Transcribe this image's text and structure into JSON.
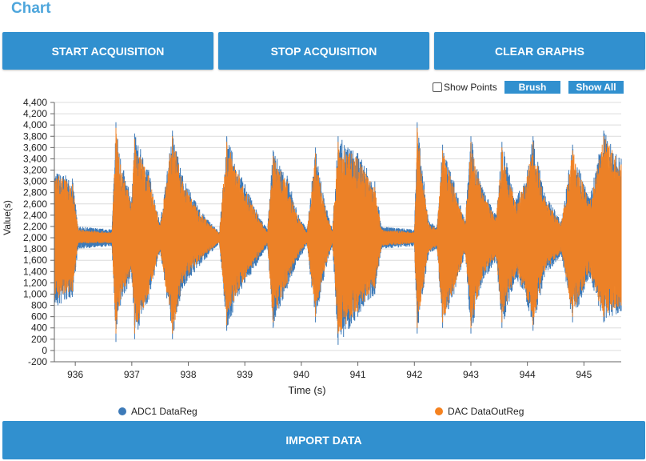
{
  "page": {
    "title": "Chart"
  },
  "toolbar": {
    "start_label": "START ACQUISITION",
    "stop_label": "STOP ACQUISITION",
    "clear_label": "CLEAR GRAPHS"
  },
  "controls": {
    "show_points_label": "Show Points",
    "show_points_checked": false,
    "brush_label": "Brush",
    "show_all_label": "Show All"
  },
  "chart_data": {
    "type": "line",
    "xlabel": "Time (s)",
    "ylabel": "Value(s)",
    "xlim": [
      935.63,
      945.66
    ],
    "ylim": [
      -200,
      4400
    ],
    "x_ticks": [
      936,
      937,
      938,
      939,
      940,
      941,
      942,
      943,
      944,
      945
    ],
    "y_ticks": [
      -200,
      0,
      200,
      400,
      600,
      800,
      1000,
      1200,
      1400,
      1600,
      1800,
      2000,
      2200,
      2400,
      2600,
      2800,
      3000,
      3200,
      3400,
      3600,
      3800,
      4000,
      4200,
      4400
    ],
    "y_tick_labels": [
      "-200",
      "0",
      "200",
      "400",
      "600",
      "800",
      "1,000",
      "1,200",
      "1,400",
      "1,600",
      "1,800",
      "2,000",
      "2,200",
      "2,400",
      "2,600",
      "2,800",
      "3,000",
      "3,200",
      "3,400",
      "3,600",
      "3,800",
      "4,000",
      "4,200",
      "4,400"
    ],
    "grid": true,
    "legend_position": "bottom",
    "baseline": 2000,
    "series": [
      {
        "name": "ADC1 DataReg",
        "color": "#3d7ab8",
        "envelope": [
          {
            "x": 935.63,
            "min": 700,
            "max": 3200
          },
          {
            "x": 935.95,
            "min": 950,
            "max": 3050
          },
          {
            "x": 936.05,
            "min": 1800,
            "max": 2200
          },
          {
            "x": 936.65,
            "min": 1850,
            "max": 2150
          },
          {
            "x": 936.72,
            "min": 150,
            "max": 4050
          },
          {
            "x": 936.8,
            "min": 800,
            "max": 3400
          },
          {
            "x": 937.0,
            "min": 1300,
            "max": 2700
          },
          {
            "x": 937.05,
            "min": 200,
            "max": 3850
          },
          {
            "x": 937.3,
            "min": 900,
            "max": 3200
          },
          {
            "x": 937.5,
            "min": 1750,
            "max": 2250
          },
          {
            "x": 937.72,
            "min": 200,
            "max": 3900
          },
          {
            "x": 937.9,
            "min": 1100,
            "max": 3100
          },
          {
            "x": 938.2,
            "min": 1500,
            "max": 2500
          },
          {
            "x": 938.55,
            "min": 1900,
            "max": 2100
          },
          {
            "x": 938.68,
            "min": 350,
            "max": 3800
          },
          {
            "x": 938.9,
            "min": 1000,
            "max": 3200
          },
          {
            "x": 939.2,
            "min": 1500,
            "max": 2500
          },
          {
            "x": 939.4,
            "min": 1850,
            "max": 2150
          },
          {
            "x": 939.5,
            "min": 400,
            "max": 3550
          },
          {
            "x": 939.75,
            "min": 1100,
            "max": 3100
          },
          {
            "x": 939.95,
            "min": 1600,
            "max": 2400
          },
          {
            "x": 940.1,
            "min": 1850,
            "max": 2150
          },
          {
            "x": 940.25,
            "min": 500,
            "max": 3600
          },
          {
            "x": 940.4,
            "min": 1300,
            "max": 2700
          },
          {
            "x": 940.55,
            "min": 1850,
            "max": 2150
          },
          {
            "x": 940.65,
            "min": 100,
            "max": 3800
          },
          {
            "x": 941.0,
            "min": 600,
            "max": 3500
          },
          {
            "x": 941.3,
            "min": 1000,
            "max": 3000
          },
          {
            "x": 941.42,
            "min": 1800,
            "max": 2200
          },
          {
            "x": 942.0,
            "min": 1850,
            "max": 2150
          },
          {
            "x": 942.05,
            "min": 300,
            "max": 4050
          },
          {
            "x": 942.25,
            "min": 1700,
            "max": 2300
          },
          {
            "x": 942.4,
            "min": 1800,
            "max": 2200
          },
          {
            "x": 942.5,
            "min": 400,
            "max": 3650
          },
          {
            "x": 942.7,
            "min": 1000,
            "max": 3000
          },
          {
            "x": 942.9,
            "min": 1700,
            "max": 2300
          },
          {
            "x": 943.0,
            "min": 300,
            "max": 3800
          },
          {
            "x": 943.2,
            "min": 1200,
            "max": 2900
          },
          {
            "x": 943.45,
            "min": 1600,
            "max": 2400
          },
          {
            "x": 943.55,
            "min": 400,
            "max": 3700
          },
          {
            "x": 943.8,
            "min": 1300,
            "max": 2700
          },
          {
            "x": 944.0,
            "min": 800,
            "max": 3200
          },
          {
            "x": 944.1,
            "min": 350,
            "max": 3800
          },
          {
            "x": 944.3,
            "min": 1300,
            "max": 2800
          },
          {
            "x": 944.6,
            "min": 1700,
            "max": 2300
          },
          {
            "x": 944.8,
            "min": 500,
            "max": 3650
          },
          {
            "x": 945.1,
            "min": 1300,
            "max": 2700
          },
          {
            "x": 945.35,
            "min": 500,
            "max": 3900
          },
          {
            "x": 945.66,
            "min": 700,
            "max": 3400
          }
        ]
      },
      {
        "name": "DAC DataOutReg",
        "color": "#f5821f",
        "envelope": [
          {
            "x": 935.63,
            "min": 900,
            "max": 3150
          },
          {
            "x": 935.95,
            "min": 1050,
            "max": 2950
          },
          {
            "x": 936.05,
            "min": 1900,
            "max": 2150
          },
          {
            "x": 936.65,
            "min": 1900,
            "max": 2100
          },
          {
            "x": 936.72,
            "min": 300,
            "max": 3950
          },
          {
            "x": 936.8,
            "min": 900,
            "max": 3300
          },
          {
            "x": 937.0,
            "min": 1400,
            "max": 2600
          },
          {
            "x": 937.05,
            "min": 300,
            "max": 3750
          },
          {
            "x": 937.3,
            "min": 1000,
            "max": 3100
          },
          {
            "x": 937.5,
            "min": 1800,
            "max": 2200
          },
          {
            "x": 937.72,
            "min": 300,
            "max": 3800
          },
          {
            "x": 937.9,
            "min": 1200,
            "max": 3000
          },
          {
            "x": 938.2,
            "min": 1600,
            "max": 2450
          },
          {
            "x": 938.55,
            "min": 1920,
            "max": 2080
          },
          {
            "x": 938.68,
            "min": 450,
            "max": 3700
          },
          {
            "x": 938.9,
            "min": 1100,
            "max": 3100
          },
          {
            "x": 939.2,
            "min": 1600,
            "max": 2450
          },
          {
            "x": 939.4,
            "min": 1900,
            "max": 2100
          },
          {
            "x": 939.5,
            "min": 500,
            "max": 3450
          },
          {
            "x": 939.75,
            "min": 1200,
            "max": 3000
          },
          {
            "x": 939.95,
            "min": 1700,
            "max": 2350
          },
          {
            "x": 940.1,
            "min": 1900,
            "max": 2100
          },
          {
            "x": 940.25,
            "min": 600,
            "max": 3500
          },
          {
            "x": 940.4,
            "min": 1400,
            "max": 2600
          },
          {
            "x": 940.55,
            "min": 1900,
            "max": 2100
          },
          {
            "x": 940.65,
            "min": 300,
            "max": 3700
          },
          {
            "x": 941.0,
            "min": 700,
            "max": 3400
          },
          {
            "x": 941.3,
            "min": 1100,
            "max": 2900
          },
          {
            "x": 941.42,
            "min": 1850,
            "max": 2150
          },
          {
            "x": 942.0,
            "min": 1900,
            "max": 2100
          },
          {
            "x": 942.05,
            "min": 400,
            "max": 3950
          },
          {
            "x": 942.25,
            "min": 1750,
            "max": 2250
          },
          {
            "x": 942.4,
            "min": 1850,
            "max": 2150
          },
          {
            "x": 942.5,
            "min": 500,
            "max": 3550
          },
          {
            "x": 942.7,
            "min": 1100,
            "max": 2900
          },
          {
            "x": 942.9,
            "min": 1750,
            "max": 2250
          },
          {
            "x": 943.0,
            "min": 400,
            "max": 3700
          },
          {
            "x": 943.2,
            "min": 1300,
            "max": 2800
          },
          {
            "x": 943.45,
            "min": 1650,
            "max": 2350
          },
          {
            "x": 943.55,
            "min": 500,
            "max": 3600
          },
          {
            "x": 943.8,
            "min": 1400,
            "max": 2600
          },
          {
            "x": 944.0,
            "min": 900,
            "max": 3100
          },
          {
            "x": 944.1,
            "min": 450,
            "max": 3700
          },
          {
            "x": 944.3,
            "min": 1400,
            "max": 2700
          },
          {
            "x": 944.6,
            "min": 1750,
            "max": 2250
          },
          {
            "x": 944.8,
            "min": 600,
            "max": 3550
          },
          {
            "x": 945.1,
            "min": 1400,
            "max": 2600
          },
          {
            "x": 945.35,
            "min": 600,
            "max": 3800
          },
          {
            "x": 945.66,
            "min": 800,
            "max": 3300
          }
        ]
      }
    ]
  },
  "import": {
    "label": "IMPORT DATA"
  }
}
